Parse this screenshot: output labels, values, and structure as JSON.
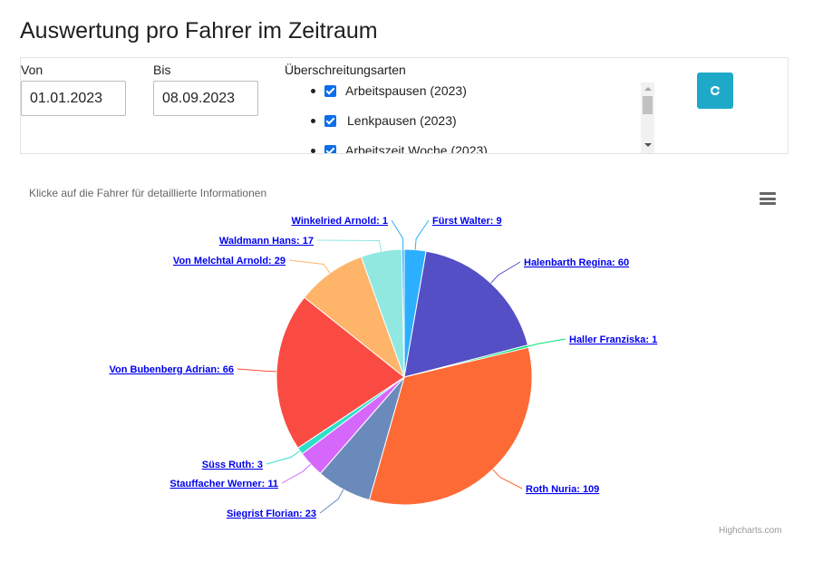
{
  "page": {
    "title": "Auswertung pro Fahrer im Zeitraum"
  },
  "filter": {
    "from_label": "Von",
    "from_value": "01.01.2023",
    "to_label": "Bis",
    "to_value": "08.09.2023",
    "types_label": "Überschreitungsarten",
    "types": [
      {
        "label": "Arbeitspausen (2023)",
        "checked": true
      },
      {
        "label": "Lenkpausen (2023)",
        "checked": true
      },
      {
        "label": "Arbeitszeit Woche (2023)",
        "checked": true
      }
    ],
    "refresh_icon": "refresh-icon",
    "refresh_color": "#1ea9c8"
  },
  "chart_hint": "Klicke auf die Fahrer für detaillierte Informationen",
  "menu_icon": "hamburger-menu-icon",
  "credits": "Highcharts.com",
  "chart_data": {
    "type": "pie",
    "title": "",
    "slices": [
      {
        "name": "Fürst Walter",
        "value": 9,
        "color": "#2caffe"
      },
      {
        "name": "Halenbarth Regina",
        "value": 60,
        "color": "#544fc5"
      },
      {
        "name": "Haller Franziska",
        "value": 1,
        "color": "#00e272"
      },
      {
        "name": "Roth Nuria",
        "value": 109,
        "color": "#fe6a35"
      },
      {
        "name": "Siegrist Florian",
        "value": 23,
        "color": "#6b8abc"
      },
      {
        "name": "Stauffacher Werner",
        "value": 11,
        "color": "#d568fb"
      },
      {
        "name": "Süss Ruth",
        "value": 3,
        "color": "#2ee0ca"
      },
      {
        "name": "Von Bubenberg Adrian",
        "value": 66,
        "color": "#fa4b42"
      },
      {
        "name": "Von Melchtal Arnold",
        "value": 29,
        "color": "#feb56a"
      },
      {
        "name": "Waldmann Hans",
        "value": 17,
        "color": "#91e8e1"
      },
      {
        "name": "Winkelried Arnold",
        "value": 1,
        "color": "#2caffe"
      }
    ],
    "data_label_color": "#0000ee"
  }
}
